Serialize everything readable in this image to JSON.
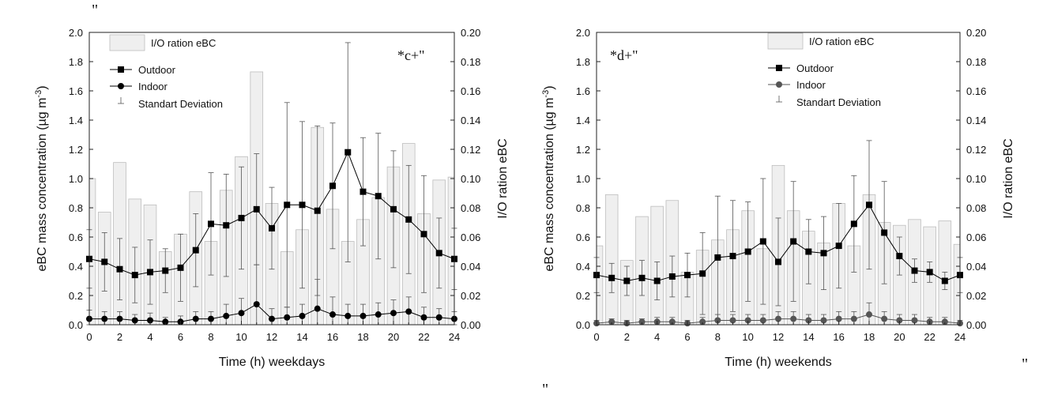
{
  "stray_marks": [
    "\"",
    "\"",
    "\""
  ],
  "chart_data": [
    {
      "type": "line",
      "panel_label": "*c+\"",
      "xlabel": "Time (h) weekdays",
      "ylabel": "eBC mass concentration (µg m",
      "ylabel_sup": "-3",
      "ylabel_tail": ")",
      "y2label": "I/O ration eBC",
      "xlim": [
        0,
        24
      ],
      "xticks": [
        0,
        2,
        4,
        6,
        8,
        10,
        12,
        14,
        16,
        18,
        20,
        22,
        24
      ],
      "ylim": [
        0,
        2.0
      ],
      "yticks": [
        "0.0",
        "0.2",
        "0.4",
        "0.6",
        "0.8",
        "1.0",
        "1.2",
        "1.4",
        "1.6",
        "1.8",
        "2.0"
      ],
      "y2lim": [
        0,
        0.2
      ],
      "y2ticks": [
        "0.00",
        "0.02",
        "0.04",
        "0.06",
        "0.08",
        "0.10",
        "0.12",
        "0.14",
        "0.16",
        "0.18",
        "0.20"
      ],
      "legend": {
        "position": "top-left",
        "bar_label": "I/O ration eBC",
        "outdoor_label": "Outdoor",
        "indoor_label": "Indoor",
        "sd_label": "Standart Deviation"
      },
      "colors": {
        "bar_fill": "#efefef",
        "bar_stroke": "#bdbdbd",
        "outdoor": "#000000",
        "indoor": "#000000",
        "errorbar": "#555555"
      },
      "x": [
        0,
        1,
        2,
        3,
        4,
        5,
        6,
        7,
        8,
        9,
        10,
        11,
        12,
        13,
        14,
        15,
        16,
        17,
        18,
        19,
        20,
        21,
        22,
        23,
        24
      ],
      "series": [
        {
          "name": "I/O ration eBC",
          "axis": "right",
          "kind": "bar",
          "values": [
            0.1,
            0.077,
            0.111,
            0.086,
            0.082,
            0.05,
            0.062,
            0.091,
            0.057,
            0.092,
            0.115,
            0.173,
            0.083,
            0.05,
            0.065,
            0.135,
            0.079,
            0.057,
            0.072,
            0.087,
            0.108,
            0.124,
            0.076,
            0.099,
            0.101
          ]
        },
        {
          "name": "Outdoor",
          "axis": "left",
          "kind": "line",
          "marker": "square",
          "values": [
            0.45,
            0.43,
            0.38,
            0.34,
            0.36,
            0.37,
            0.39,
            0.51,
            0.69,
            0.68,
            0.73,
            0.79,
            0.66,
            0.82,
            0.82,
            0.78,
            0.95,
            1.18,
            0.91,
            0.88,
            0.79,
            0.72,
            0.62,
            0.49,
            0.45
          ],
          "sd": [
            0.2,
            0.2,
            0.21,
            0.19,
            0.22,
            0.15,
            0.23,
            0.25,
            0.35,
            0.35,
            0.35,
            0.38,
            0.28,
            0.7,
            0.57,
            0.58,
            0.43,
            0.75,
            0.37,
            0.43,
            0.4,
            0.37,
            0.4,
            0.24,
            0.21
          ]
        },
        {
          "name": "Indoor",
          "axis": "left",
          "kind": "line",
          "marker": "circle",
          "values": [
            0.04,
            0.04,
            0.04,
            0.03,
            0.03,
            0.02,
            0.02,
            0.04,
            0.04,
            0.06,
            0.08,
            0.14,
            0.04,
            0.05,
            0.06,
            0.11,
            0.07,
            0.06,
            0.06,
            0.07,
            0.08,
            0.09,
            0.05,
            0.05,
            0.04
          ],
          "sd": [
            0.06,
            0.05,
            0.05,
            0.04,
            0.05,
            0.03,
            0.04,
            0.05,
            0.05,
            0.08,
            0.1,
            0.27,
            0.07,
            0.07,
            0.08,
            0.2,
            0.12,
            0.08,
            0.08,
            0.08,
            0.09,
            0.1,
            0.07,
            0.06,
            0.05
          ]
        }
      ]
    },
    {
      "type": "line",
      "panel_label": "*d+\"",
      "xlabel": "Time (h) weekends",
      "ylabel": "eBC mass concentration (µg m",
      "ylabel_sup": "-3",
      "ylabel_tail": ")",
      "y2label": "I/O ration eBC",
      "xlim": [
        0,
        24
      ],
      "xticks": [
        0,
        2,
        4,
        6,
        8,
        10,
        12,
        14,
        16,
        18,
        20,
        22,
        24
      ],
      "ylim": [
        0,
        2.0
      ],
      "yticks": [
        "0.0",
        "0.2",
        "0.4",
        "0.6",
        "0.8",
        "1.0",
        "1.2",
        "1.4",
        "1.6",
        "1.8",
        "2.0"
      ],
      "y2lim": [
        0,
        0.2
      ],
      "y2ticks": [
        "0.00",
        "0.02",
        "0.04",
        "0.06",
        "0.08",
        "0.10",
        "0.12",
        "0.14",
        "0.16",
        "0.18",
        "0.20"
      ],
      "legend": {
        "position": "top-right",
        "bar_label": "I/O ration eBC",
        "outdoor_label": "Outdoor",
        "indoor_label": "Indoor",
        "sd_label": "Standart Deviation"
      },
      "colors": {
        "bar_fill": "#efefef",
        "bar_stroke": "#bdbdbd",
        "outdoor": "#000000",
        "indoor": "#555555",
        "errorbar": "#555555"
      },
      "x": [
        0,
        1,
        2,
        3,
        4,
        5,
        6,
        7,
        8,
        9,
        10,
        11,
        12,
        13,
        14,
        15,
        16,
        17,
        18,
        19,
        20,
        21,
        22,
        23,
        24
      ],
      "series": [
        {
          "name": "I/O ration eBC",
          "axis": "right",
          "kind": "bar",
          "values": [
            0.054,
            0.089,
            0.044,
            0.074,
            0.081,
            0.085,
            0.036,
            0.051,
            0.058,
            0.065,
            0.078,
            0.052,
            0.109,
            0.078,
            0.064,
            0.056,
            0.083,
            0.054,
            0.089,
            0.07,
            0.068,
            0.072,
            0.067,
            0.071,
            0.055
          ]
        },
        {
          "name": "Outdoor",
          "axis": "left",
          "kind": "line",
          "marker": "square",
          "values": [
            0.34,
            0.32,
            0.3,
            0.32,
            0.3,
            0.33,
            0.34,
            0.35,
            0.46,
            0.47,
            0.5,
            0.57,
            0.43,
            0.57,
            0.5,
            0.49,
            0.54,
            0.69,
            0.82,
            0.63,
            0.47,
            0.37,
            0.36,
            0.3,
            0.34
          ],
          "sd": [
            0.12,
            0.1,
            0.1,
            0.12,
            0.13,
            0.14,
            0.15,
            0.28,
            0.42,
            0.38,
            0.34,
            0.43,
            0.3,
            0.41,
            0.22,
            0.25,
            0.29,
            0.33,
            0.44,
            0.35,
            0.13,
            0.08,
            0.07,
            0.06,
            0.12
          ]
        },
        {
          "name": "Indoor",
          "axis": "left",
          "kind": "line",
          "marker": "circle",
          "values": [
            0.01,
            0.02,
            0.01,
            0.02,
            0.02,
            0.02,
            0.01,
            0.02,
            0.03,
            0.03,
            0.03,
            0.03,
            0.04,
            0.04,
            0.03,
            0.03,
            0.04,
            0.04,
            0.07,
            0.04,
            0.03,
            0.03,
            0.02,
            0.02,
            0.01
          ],
          "sd": [
            0.02,
            0.02,
            0.02,
            0.02,
            0.03,
            0.03,
            0.02,
            0.03,
            0.04,
            0.04,
            0.04,
            0.04,
            0.05,
            0.05,
            0.04,
            0.04,
            0.05,
            0.05,
            0.08,
            0.05,
            0.04,
            0.04,
            0.03,
            0.03,
            0.02
          ]
        }
      ]
    }
  ]
}
